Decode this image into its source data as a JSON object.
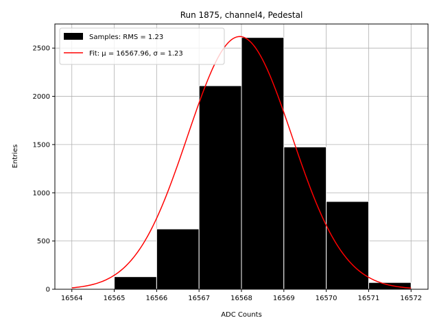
{
  "chart_data": {
    "type": "histogram",
    "title": "Run 1875, channel4, Pedestal",
    "xlabel": "ADC Counts",
    "ylabel": "Entries",
    "xlim": [
      16563.6,
      16572.4
    ],
    "ylim": [
      0,
      2750
    ],
    "grid": true,
    "legend_position": "top-left",
    "x_ticks": [
      16564,
      16565,
      16566,
      16567,
      16568,
      16569,
      16570,
      16571,
      16572
    ],
    "y_ticks": [
      0,
      500,
      1000,
      1500,
      2000,
      2500
    ],
    "bins": [
      {
        "x0": 16564.0,
        "x1": 16564.8,
        "count": 5
      },
      {
        "x0": 16565.0,
        "x1": 16566.0,
        "count": 130
      },
      {
        "x0": 16566.0,
        "x1": 16567.0,
        "count": 625
      },
      {
        "x0": 16567.0,
        "x1": 16568.0,
        "count": 2110
      },
      {
        "x0": 16568.0,
        "x1": 16569.0,
        "count": 2610
      },
      {
        "x0": 16569.0,
        "x1": 16570.0,
        "count": 1475
      },
      {
        "x0": 16570.0,
        "x1": 16571.0,
        "count": 910
      },
      {
        "x0": 16571.0,
        "x1": 16572.0,
        "count": 70
      },
      {
        "x0": 16572.0,
        "x1": 16572.5,
        "count": 3
      }
    ],
    "bar_color": "#000000",
    "bar_edge_color": "#ffffff",
    "fit": {
      "type": "gaussian",
      "mu": 16567.96,
      "sigma": 1.23,
      "amplitude": 2620,
      "x_range": [
        16564,
        16572
      ],
      "color": "#ff0000"
    },
    "legend": [
      {
        "label": "Samples: RMS = 1.23",
        "kind": "patch",
        "color": "#000000"
      },
      {
        "label": "Fit: μ = 16567.96, σ = 1.23",
        "kind": "line",
        "color": "#ff0000"
      }
    ]
  }
}
